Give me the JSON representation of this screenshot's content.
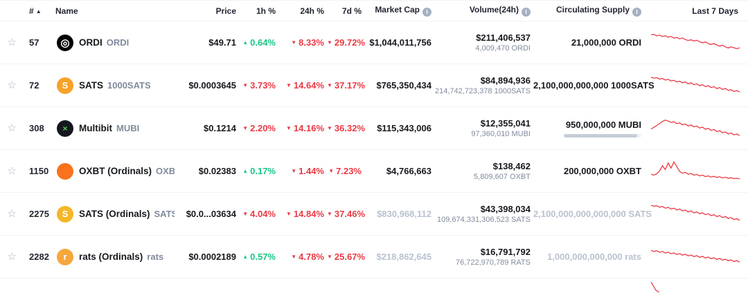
{
  "colors": {
    "up": "#16c784",
    "down": "#ea3943",
    "spark": "#ea3943"
  },
  "icons": {
    "star": "☆",
    "sort": "▲",
    "info": "i"
  },
  "header": {
    "rank": "#",
    "name": "Name",
    "price": "Price",
    "h1": "1h %",
    "h24": "24h %",
    "d7": "7d %",
    "market_cap": "Market Cap",
    "volume": "Volume(24h)",
    "supply": "Circulating Supply",
    "last7": "Last 7 Days"
  },
  "rows": [
    {
      "rank": "57",
      "icon": {
        "glyph": "◎",
        "style": "background:#000000;color:#ffffff;font-size:15px"
      },
      "name": "ORDI",
      "ticker": "ORDI",
      "price": "$49.71",
      "change_1h": {
        "dir": "up",
        "value": "0.64%"
      },
      "change_24h": {
        "dir": "down",
        "value": "8.33%"
      },
      "change_7d": {
        "dir": "down",
        "value": "29.72%"
      },
      "market_cap": {
        "value": "$1,044,011,756",
        "muted": "false"
      },
      "volume": {
        "usd": "$211,406,537",
        "base": "4,009,470 ORDI"
      },
      "supply": {
        "value": "21,000,000 ORDI",
        "muted": "false"
      },
      "sparkline": [
        84,
        86,
        80,
        83,
        77,
        80,
        74,
        77,
        70,
        73,
        67,
        71,
        64,
        60,
        63,
        58,
        61,
        55,
        50,
        54,
        47,
        43,
        47,
        41,
        36,
        40,
        33,
        28,
        33,
        29,
        25,
        29
      ]
    },
    {
      "rank": "72",
      "icon": {
        "glyph": "S",
        "style": "background:#f7a228;color:#ffffff"
      },
      "name": "SATS",
      "ticker": "1000SATS",
      "price": "$0.0003645",
      "change_1h": {
        "dir": "down",
        "value": "3.73%"
      },
      "change_24h": {
        "dir": "down",
        "value": "14.64%"
      },
      "change_7d": {
        "dir": "down",
        "value": "37.17%"
      },
      "market_cap": {
        "value": "$765,350,434",
        "muted": "false"
      },
      "volume": {
        "usd": "$84,894,936",
        "base": "214,742,723,378 1000SATS"
      },
      "supply": {
        "value": "2,100,000,000,000 1000SATS",
        "muted": "false"
      },
      "sparkline": [
        86,
        82,
        84,
        78,
        81,
        74,
        77,
        70,
        73,
        66,
        69,
        62,
        66,
        58,
        62,
        54,
        58,
        50,
        54,
        46,
        50,
        42,
        46,
        38,
        42,
        34,
        38,
        30,
        33,
        26,
        29,
        23
      ]
    },
    {
      "rank": "308",
      "icon": {
        "glyph": "×",
        "style": "background:#15181e;color:#57cc5e;font-size:12px"
      },
      "name": "Multibit",
      "ticker": "MUBI",
      "price": "$0.1214",
      "change_1h": {
        "dir": "down",
        "value": "2.20%"
      },
      "change_24h": {
        "dir": "down",
        "value": "14.16%"
      },
      "change_7d": {
        "dir": "down",
        "value": "36.32%"
      },
      "market_cap": {
        "value": "$115,343,006",
        "muted": "false"
      },
      "volume": {
        "usd": "$12,355,041",
        "base": "97,360,010 MUBI"
      },
      "supply": {
        "value": "950,000,000 MUBI",
        "muted": "false",
        "bar_style": "width:95%"
      },
      "sparkline": [
        48,
        55,
        63,
        72,
        80,
        86,
        82,
        76,
        79,
        71,
        74,
        66,
        69,
        61,
        65,
        57,
        61,
        52,
        56,
        47,
        51,
        42,
        46,
        37,
        41,
        32,
        36,
        27,
        31,
        23,
        27,
        20
      ]
    },
    {
      "rank": "1150",
      "icon": {
        "glyph": "",
        "style": "background:#f9731f"
      },
      "name": "OXBT (Ordinals)",
      "ticker": "OXBT",
      "price": "$0.02383",
      "change_1h": {
        "dir": "up",
        "value": "0.17%"
      },
      "change_24h": {
        "dir": "down",
        "value": "1.44%"
      },
      "change_7d": {
        "dir": "down",
        "value": "7.23%"
      },
      "market_cap": {
        "value": "$4,766,663",
        "muted": "false"
      },
      "volume": {
        "usd": "$138,462",
        "base": "5,809,607 OXBT"
      },
      "supply": {
        "value": "200,000,000 OXBT",
        "muted": "false"
      },
      "sparkline": [
        38,
        34,
        40,
        52,
        74,
        58,
        86,
        64,
        90,
        70,
        50,
        42,
        46,
        38,
        41,
        34,
        37,
        31,
        34,
        28,
        31,
        26,
        29,
        24,
        27,
        22,
        25,
        21,
        23,
        19,
        21,
        18
      ]
    },
    {
      "rank": "2275",
      "icon": {
        "glyph": "S",
        "style": "background:#f4b62a;color:#ffffff"
      },
      "name": "SATS (Ordinals)",
      "ticker": "SATS",
      "price": "$0.0...03634",
      "change_1h": {
        "dir": "down",
        "value": "4.04%"
      },
      "change_24h": {
        "dir": "down",
        "value": "14.84%"
      },
      "change_7d": {
        "dir": "down",
        "value": "37.46%"
      },
      "market_cap": {
        "value": "$830,968,112",
        "muted": "true"
      },
      "volume": {
        "usd": "$43,398,034",
        "base": "109,674,331,306,523 SATS"
      },
      "supply": {
        "value": "2,100,000,000,000,000 SATS",
        "muted": "true"
      },
      "sparkline": [
        88,
        84,
        86,
        80,
        83,
        76,
        79,
        72,
        76,
        68,
        72,
        64,
        68,
        60,
        64,
        56,
        60,
        52,
        56,
        48,
        52,
        44,
        48,
        40,
        44,
        36,
        40,
        32,
        36,
        28,
        31,
        24
      ]
    },
    {
      "rank": "2282",
      "icon": {
        "glyph": "r",
        "style": "background:#f5a73c;color:#ffffff"
      },
      "name": "rats (Ordinals)",
      "ticker": "rats",
      "price": "$0.0002189",
      "change_1h": {
        "dir": "up",
        "value": "0.57%"
      },
      "change_24h": {
        "dir": "down",
        "value": "4.78%"
      },
      "change_7d": {
        "dir": "down",
        "value": "25.67%"
      },
      "market_cap": {
        "value": "$218,862,645",
        "muted": "true"
      },
      "volume": {
        "usd": "$16,791,792",
        "base": "76,722,970,789 RATS"
      },
      "supply": {
        "value": "1,000,000,000,000 rats",
        "muted": "true"
      },
      "sparkline": [
        78,
        74,
        77,
        70,
        74,
        67,
        71,
        64,
        68,
        61,
        65,
        58,
        62,
        55,
        59,
        52,
        56,
        49,
        53,
        46,
        50,
        43,
        47,
        40,
        44,
        37,
        41,
        34,
        38,
        31,
        35,
        28
      ]
    }
  ],
  "partial_row": {
    "sparkline": [
      94,
      60,
      45,
      40,
      36,
      33,
      30,
      28,
      26,
      24,
      22,
      20,
      18,
      17,
      16,
      15,
      14,
      13,
      12,
      11
    ]
  }
}
